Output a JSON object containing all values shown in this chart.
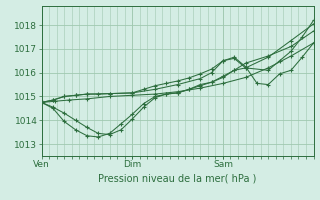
{
  "title": "Pression niveau de la mer( hPa )",
  "bg_color": "#d4ede4",
  "grid_color": "#a0c8b0",
  "line_color": "#2d6e3e",
  "ylim": [
    1012.5,
    1018.8
  ],
  "yticks": [
    1013,
    1014,
    1015,
    1016,
    1017,
    1018
  ],
  "xtick_labels": [
    "Ven",
    "Dim",
    "Sam"
  ],
  "xtick_positions": [
    0.0,
    0.333,
    0.667
  ],
  "vline_positions": [
    0.0,
    0.333,
    0.667
  ],
  "series": [
    {
      "x": [
        0.0,
        0.05,
        0.1,
        0.167,
        0.25,
        0.333,
        0.417,
        0.5,
        0.583,
        0.667,
        0.75,
        0.833,
        0.917,
        1.0
      ],
      "y": [
        1014.75,
        1014.8,
        1014.85,
        1014.9,
        1015.0,
        1015.05,
        1015.1,
        1015.2,
        1015.35,
        1015.55,
        1015.8,
        1016.2,
        1016.7,
        1017.25
      ]
    },
    {
      "x": [
        0.0,
        0.042,
        0.083,
        0.125,
        0.167,
        0.208,
        0.25,
        0.292,
        0.333,
        0.375,
        0.417,
        0.458,
        0.5,
        0.542,
        0.583,
        0.625,
        0.667,
        0.708,
        0.75,
        0.833,
        0.917,
        1.0
      ],
      "y": [
        1014.75,
        1014.5,
        1013.95,
        1013.6,
        1013.35,
        1013.3,
        1013.45,
        1013.85,
        1014.25,
        1014.7,
        1015.0,
        1015.1,
        1015.15,
        1015.3,
        1015.45,
        1015.6,
        1015.8,
        1016.1,
        1016.2,
        1016.65,
        1017.35,
        1018.05
      ]
    },
    {
      "x": [
        0.0,
        0.042,
        0.083,
        0.125,
        0.167,
        0.208,
        0.25,
        0.292,
        0.333,
        0.375,
        0.417,
        0.458,
        0.5,
        0.542,
        0.583,
        0.625,
        0.667,
        0.708,
        0.75,
        0.833,
        0.917,
        1.0
      ],
      "y": [
        1014.75,
        1014.55,
        1014.3,
        1014.0,
        1013.7,
        1013.45,
        1013.4,
        1013.6,
        1014.05,
        1014.55,
        1014.95,
        1015.1,
        1015.15,
        1015.3,
        1015.5,
        1015.6,
        1015.85,
        1016.1,
        1016.4,
        1016.7,
        1017.1,
        1017.75
      ]
    },
    {
      "x": [
        0.0,
        0.042,
        0.083,
        0.125,
        0.167,
        0.25,
        0.333,
        0.375,
        0.417,
        0.458,
        0.5,
        0.542,
        0.583,
        0.625,
        0.667,
        0.708,
        0.75,
        0.792,
        0.833,
        0.875,
        0.917,
        0.958,
        1.0
      ],
      "y": [
        1014.75,
        1014.85,
        1015.0,
        1015.05,
        1015.1,
        1015.12,
        1015.15,
        1015.3,
        1015.45,
        1015.55,
        1015.65,
        1015.78,
        1015.95,
        1016.15,
        1016.5,
        1016.65,
        1016.25,
        1015.55,
        1015.5,
        1015.95,
        1016.1,
        1016.65,
        1017.25
      ]
    },
    {
      "x": [
        0.0,
        0.042,
        0.083,
        0.125,
        0.167,
        0.208,
        0.25,
        0.333,
        0.417,
        0.5,
        0.583,
        0.625,
        0.667,
        0.708,
        0.75,
        0.833,
        0.875,
        0.917,
        0.958,
        1.0
      ],
      "y": [
        1014.75,
        1014.85,
        1015.0,
        1015.05,
        1015.1,
        1015.1,
        1015.12,
        1015.15,
        1015.3,
        1015.5,
        1015.75,
        1016.0,
        1016.5,
        1016.6,
        1016.2,
        1016.1,
        1016.5,
        1016.9,
        1017.5,
        1018.2
      ]
    }
  ]
}
